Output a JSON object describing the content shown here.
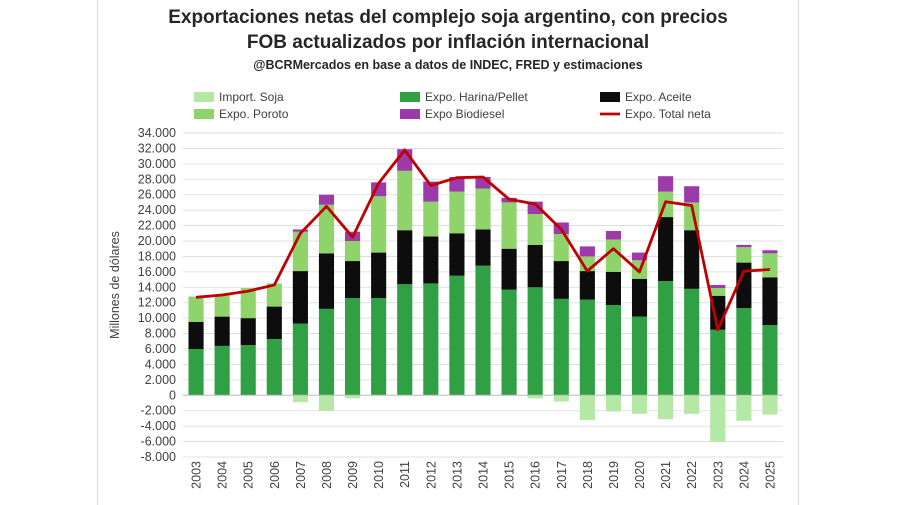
{
  "chart_data": {
    "type": "bar",
    "title_line1": "Exportaciones netas del complejo soja argentino, con precios",
    "title_line2": "FOB actualizados por inflación internacional",
    "subtitle": "@BCRMercados  en base a datos de INDEC, FRED y estimaciones",
    "ylabel": "Millones de dólares",
    "xlabel": "",
    "ylim": [
      -8000,
      34000
    ],
    "yticks": [
      -8000,
      -6000,
      -4000,
      -2000,
      0,
      2000,
      4000,
      6000,
      8000,
      10000,
      12000,
      14000,
      16000,
      18000,
      20000,
      22000,
      24000,
      26000,
      28000,
      30000,
      32000,
      34000
    ],
    "ytick_labels": [
      "-8.000",
      "-6.000",
      "-4.000",
      "-2.000",
      "0",
      "2.000",
      "4.000",
      "6.000",
      "8.000",
      "10.000",
      "12.000",
      "14.000",
      "16.000",
      "18.000",
      "20.000",
      "22.000",
      "24.000",
      "26.000",
      "28.000",
      "30.000",
      "32.000",
      "34.000"
    ],
    "categories": [
      "2003",
      "2004",
      "2005",
      "2006",
      "2007",
      "2008",
      "2009",
      "2010",
      "2011",
      "2012",
      "2013",
      "2014",
      "2015",
      "2016",
      "2017",
      "2018",
      "2019",
      "2020",
      "2021",
      "2022",
      "2023",
      "2024",
      "2025"
    ],
    "series": [
      {
        "name": "Import. Soja",
        "color": "#b4e8a4",
        "kind": "bar",
        "values": [
          0,
          0,
          0,
          0,
          -900,
          -2000,
          -400,
          0,
          0,
          0,
          0,
          0,
          0,
          -400,
          -800,
          -3200,
          -2100,
          -2400,
          -3100,
          -2400,
          -6000,
          -3300,
          -2500
        ]
      },
      {
        "name": "Expo. Harina/Pellet",
        "color": "#2fa043",
        "kind": "bar",
        "values": [
          6000,
          6400,
          6500,
          7300,
          9300,
          11200,
          12600,
          12600,
          14400,
          14500,
          15500,
          16800,
          13700,
          14000,
          12500,
          12400,
          11700,
          10200,
          14800,
          13800,
          8500,
          11300,
          9100
        ]
      },
      {
        "name": "Expo. Aceite",
        "color": "#0d0d0d",
        "kind": "bar",
        "values": [
          3500,
          3800,
          3500,
          4200,
          6800,
          7200,
          4800,
          5900,
          7000,
          6100,
          5500,
          4700,
          5300,
          5500,
          4900,
          3700,
          4300,
          4900,
          8300,
          7600,
          4400,
          5900,
          6200
        ]
      },
      {
        "name": "Expo. Poroto",
        "color": "#8ed46a",
        "kind": "bar",
        "values": [
          3300,
          2800,
          3900,
          3000,
          5100,
          6300,
          2600,
          7300,
          7700,
          4500,
          5400,
          5300,
          6000,
          4000,
          3500,
          1900,
          4200,
          2400,
          3300,
          3600,
          1000,
          2000,
          3100
        ]
      },
      {
        "name": "Expo Biodiesel",
        "color": "#9b3aa8",
        "kind": "bar",
        "values": [
          0,
          0,
          0,
          0,
          300,
          1300,
          1200,
          1800,
          2800,
          2600,
          1900,
          1500,
          600,
          1600,
          1500,
          1300,
          1100,
          1000,
          2000,
          2100,
          400,
          300,
          400
        ]
      },
      {
        "name": "Expo. Total neta",
        "color": "#c00000",
        "kind": "line",
        "values": [
          12700,
          13000,
          13500,
          14300,
          21000,
          24500,
          20500,
          27500,
          31800,
          27200,
          28200,
          28300,
          25400,
          24800,
          21500,
          16100,
          19000,
          16000,
          25100,
          24600,
          8500,
          16100,
          16300
        ]
      }
    ],
    "legend": {
      "placement": "top",
      "rows": [
        [
          "Import. Soja",
          "Expo. Harina/Pellet",
          "Expo. Aceite"
        ],
        [
          "Expo. Poroto",
          "Expo Biodiesel",
          "Expo. Total neta"
        ]
      ]
    },
    "grid": true
  }
}
